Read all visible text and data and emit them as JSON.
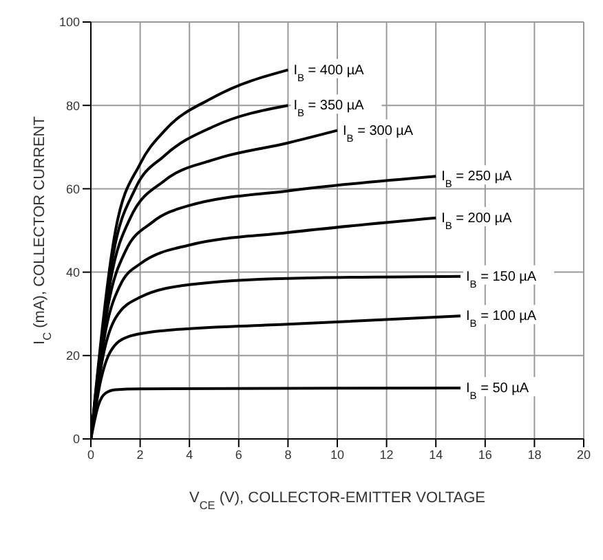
{
  "chart_data": {
    "type": "line",
    "xlabel": "V$_{CE}$ (V), COLLECTOR-EMITTER VOLTAGE",
    "ylabel": "I$_{C}$ (mA), COLLECTOR CURRENT",
    "xlim": [
      0,
      20
    ],
    "xticks": [
      0,
      2,
      4,
      6,
      8,
      10,
      12,
      14,
      16,
      18,
      20
    ],
    "ylim": [
      0,
      100
    ],
    "yticks": [
      0,
      20,
      40,
      60,
      80,
      100
    ],
    "grid": true,
    "marker": "none",
    "line_style": "solid",
    "series": [
      {
        "name": "I$_{B}$ = 400 µA",
        "color": "#000000",
        "x": [
          0,
          1,
          2,
          3,
          5,
          8
        ],
        "values": [
          0,
          50,
          66,
          74,
          82,
          88.5
        ]
      },
      {
        "name": "I$_{B}$ = 350 µA",
        "color": "#000000",
        "x": [
          0,
          0.9,
          1.8,
          3,
          5,
          8
        ],
        "values": [
          0,
          44,
          60,
          68,
          75,
          80
        ]
      },
      {
        "name": "I$_{B}$ = 300 µA",
        "color": "#000000",
        "x": [
          0,
          0.8,
          1.6,
          3,
          5,
          8,
          10
        ],
        "values": [
          0,
          38,
          53,
          62,
          67,
          71,
          74
        ]
      },
      {
        "name": "I$_{B}$ = 250 µA",
        "color": "#000000",
        "x": [
          0,
          0.7,
          1.4,
          2.5,
          4,
          8,
          14
        ],
        "values": [
          0,
          32,
          45,
          52,
          56,
          59.5,
          63
        ]
      },
      {
        "name": "I$_{B}$ = 200 µA",
        "color": "#000000",
        "x": [
          0,
          0.6,
          1.2,
          2,
          4,
          8,
          14
        ],
        "values": [
          0,
          26,
          37,
          42,
          46.5,
          49.5,
          53
        ]
      },
      {
        "name": "I$_{B}$ = 150 µA",
        "color": "#000000",
        "x": [
          0,
          0.5,
          1,
          2,
          4,
          8,
          15
        ],
        "values": [
          0,
          20,
          29,
          34,
          37,
          38.5,
          39
        ]
      },
      {
        "name": "I$_{B}$ = 100 µA",
        "color": "#000000",
        "x": [
          0,
          0.4,
          0.8,
          1.5,
          3,
          8,
          15
        ],
        "values": [
          0,
          14,
          21,
          24.5,
          26,
          27.5,
          29.5
        ]
      },
      {
        "name": "I$_{B}$ = 50 µA",
        "color": "#000000",
        "x": [
          0,
          0.3,
          0.6,
          1,
          2,
          15
        ],
        "values": [
          0,
          8,
          11,
          11.8,
          12,
          12.2
        ]
      }
    ]
  }
}
